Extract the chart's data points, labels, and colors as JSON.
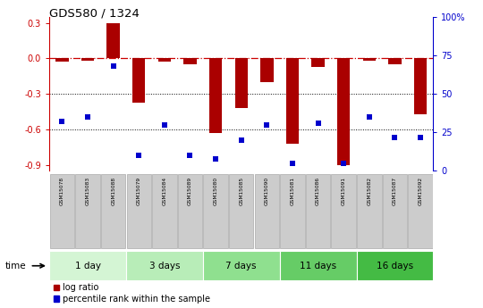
{
  "title": "GDS580 / 1324",
  "samples": [
    "GSM15078",
    "GSM15083",
    "GSM15088",
    "GSM15079",
    "GSM15084",
    "GSM15089",
    "GSM15080",
    "GSM15085",
    "GSM15090",
    "GSM15081",
    "GSM15086",
    "GSM15091",
    "GSM15082",
    "GSM15087",
    "GSM15092"
  ],
  "log_ratio": [
    -0.03,
    -0.02,
    0.3,
    -0.37,
    -0.03,
    -0.05,
    -0.63,
    -0.42,
    -0.2,
    -0.72,
    -0.07,
    -0.9,
    -0.02,
    -0.05,
    -0.47
  ],
  "percentile_rank": [
    32,
    35,
    68,
    10,
    30,
    10,
    8,
    20,
    30,
    5,
    31,
    5,
    35,
    22,
    22
  ],
  "groups": [
    {
      "label": "1 day",
      "start": 0,
      "end": 3
    },
    {
      "label": "3 days",
      "start": 3,
      "end": 6
    },
    {
      "label": "7 days",
      "start": 6,
      "end": 9
    },
    {
      "label": "11 days",
      "start": 9,
      "end": 12
    },
    {
      "label": "16 days",
      "start": 12,
      "end": 15
    }
  ],
  "group_colors": [
    "#d4f5d4",
    "#b8edb8",
    "#8fe08f",
    "#66cc66",
    "#44bb44"
  ],
  "ylim_left": [
    -0.95,
    0.35
  ],
  "ylim_right": [
    0,
    100
  ],
  "yticks_left": [
    0.3,
    0.0,
    -0.3,
    -0.6,
    -0.9
  ],
  "yticks_right": [
    100,
    75,
    50,
    25,
    0
  ],
  "right_tick_labels": [
    "100%",
    "75",
    "50",
    "25",
    "0"
  ],
  "bar_color": "#aa0000",
  "dot_color": "#0000cc",
  "hline_color": "#cc0000",
  "grid_lines": [
    -0.3,
    -0.6
  ],
  "bar_width": 0.5,
  "tick_color_left": "#cc0000",
  "tick_color_right": "#0000cc",
  "legend_log_ratio": "log ratio",
  "legend_percentile": "percentile rank within the sample",
  "sample_box_color": "#cccccc",
  "sample_box_edge": "#aaaaaa"
}
